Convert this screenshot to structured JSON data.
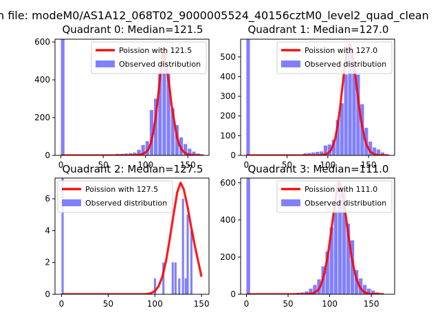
{
  "suptitle": "n file: modeM0/AS1A12_068T02_9000005524_40156cztM0_level2_quad_clean",
  "colors": {
    "bar": "#8080ff",
    "curve": "#ff0000",
    "axis": "#000000"
  },
  "chart_data": [
    {
      "type": "bar",
      "title": "Quadrant 0: Median=121.5",
      "median": 121.5,
      "xlim": [
        -7,
        175
      ],
      "ylim": [
        0,
        615
      ],
      "xticks": [
        0,
        50,
        100,
        150
      ],
      "yticks": [
        0,
        200,
        400,
        600
      ],
      "legend": [
        "Poission with 121.5",
        "Observed distribution"
      ],
      "legend_placement": "top-right",
      "bin_width": 4.2,
      "bars": [
        [
          0,
          615
        ],
        [
          65,
          8
        ],
        [
          70,
          8
        ],
        [
          75,
          10
        ],
        [
          80,
          12
        ],
        [
          85,
          15
        ],
        [
          90,
          30
        ],
        [
          95,
          55
        ],
        [
          100,
          75
        ],
        [
          105,
          240
        ],
        [
          110,
          300
        ],
        [
          115,
          430
        ],
        [
          120,
          530
        ],
        [
          125,
          435
        ],
        [
          130,
          250
        ],
        [
          135,
          160
        ],
        [
          140,
          95
        ],
        [
          145,
          60
        ],
        [
          150,
          35
        ],
        [
          155,
          20
        ],
        [
          160,
          10
        ],
        [
          165,
          5
        ]
      ],
      "curve": {
        "x": [
          0,
          80,
          85,
          90,
          95,
          100,
          103,
          106,
          109,
          112,
          115,
          118,
          121.5,
          125,
          128,
          131,
          134,
          137,
          140,
          143,
          146,
          150,
          155,
          160,
          168
        ],
        "y": [
          0,
          0,
          1,
          2,
          5,
          15,
          30,
          60,
          120,
          200,
          320,
          450,
          570,
          460,
          370,
          260,
          180,
          100,
          55,
          30,
          15,
          5,
          2,
          0,
          0
        ]
      }
    },
    {
      "type": "bar",
      "title": "Quadrant 1: Median=127.0",
      "median": 127.0,
      "xlim": [
        -7,
        182
      ],
      "ylim": [
        0,
        590
      ],
      "xticks": [
        0,
        50,
        100,
        150
      ],
      "yticks": [
        0,
        100,
        200,
        300,
        400,
        500
      ],
      "legend": [
        "Poission with 127.0",
        "Observed distribution"
      ],
      "legend_placement": "top-right",
      "bin_width": 4.4,
      "bars": [
        [
          0,
          590
        ],
        [
          70,
          10
        ],
        [
          75,
          12
        ],
        [
          80,
          15
        ],
        [
          85,
          18
        ],
        [
          90,
          20
        ],
        [
          95,
          50
        ],
        [
          100,
          55
        ],
        [
          105,
          80
        ],
        [
          110,
          180
        ],
        [
          115,
          265
        ],
        [
          120,
          410
        ],
        [
          125,
          545
        ],
        [
          130,
          470
        ],
        [
          135,
          410
        ],
        [
          140,
          260
        ],
        [
          145,
          140
        ],
        [
          150,
          70
        ],
        [
          155,
          40
        ],
        [
          160,
          30
        ],
        [
          165,
          15
        ],
        [
          170,
          5
        ]
      ],
      "curve": {
        "x": [
          0,
          85,
          90,
          95,
          100,
          103,
          106,
          109,
          112,
          115,
          118,
          121,
          124,
          127,
          130,
          133,
          136,
          139,
          142,
          145,
          148,
          152,
          157,
          162,
          175
        ],
        "y": [
          0,
          0,
          1,
          3,
          10,
          22,
          45,
          85,
          150,
          240,
          350,
          460,
          540,
          565,
          520,
          430,
          330,
          230,
          150,
          90,
          50,
          20,
          5,
          1,
          0
        ]
      }
    },
    {
      "type": "bar",
      "title": "Quadrant 2: Median=127.5",
      "median": 127.5,
      "xlim": [
        -7,
        158
      ],
      "ylim": [
        0,
        7.3
      ],
      "xticks": [
        0,
        50,
        100,
        150
      ],
      "yticks": [
        0,
        2,
        4,
        6
      ],
      "legend": [
        "Poission with 127.5",
        "Observed distribution"
      ],
      "legend_placement": "top-left",
      "bin_width": 2.3,
      "bars": [
        [
          0,
          7.3
        ],
        [
          99,
          1
        ],
        [
          108,
          2
        ],
        [
          118,
          2
        ],
        [
          121,
          2
        ],
        [
          125,
          1
        ],
        [
          129,
          6
        ],
        [
          132,
          1
        ],
        [
          134,
          5
        ],
        [
          138,
          4
        ]
      ],
      "curve": {
        "x": [
          0,
          90,
          95,
          100,
          104,
          108,
          112,
          116,
          120,
          124,
          127.5,
          131,
          135,
          139,
          143,
          147,
          150
        ],
        "y": [
          0,
          0,
          0.05,
          0.2,
          0.5,
          1.1,
          2.1,
          3.5,
          5.0,
          6.4,
          7.0,
          6.6,
          5.5,
          4.2,
          3.0,
          1.9,
          1.1
        ]
      }
    },
    {
      "type": "bar",
      "title": "Quadrant 3: Median=111.0",
      "median": 111.0,
      "xlim": [
        -7,
        178
      ],
      "ylim": [
        0,
        625
      ],
      "xticks": [
        0,
        50,
        100,
        150
      ],
      "yticks": [
        0,
        200,
        400,
        600
      ],
      "legend": [
        "Poission with 111.0",
        "Observed distribution"
      ],
      "legend_placement": "top-right",
      "bin_width": 4.4,
      "bars": [
        [
          0,
          625
        ],
        [
          55,
          5
        ],
        [
          60,
          8
        ],
        [
          65,
          10
        ],
        [
          70,
          15
        ],
        [
          75,
          30
        ],
        [
          80,
          50
        ],
        [
          85,
          80
        ],
        [
          90,
          150
        ],
        [
          95,
          230
        ],
        [
          100,
          360
        ],
        [
          105,
          460
        ],
        [
          110,
          600
        ],
        [
          115,
          580
        ],
        [
          120,
          380
        ],
        [
          125,
          290
        ],
        [
          130,
          130
        ],
        [
          135,
          85
        ],
        [
          140,
          50
        ],
        [
          145,
          30
        ],
        [
          150,
          20
        ],
        [
          155,
          10
        ],
        [
          160,
          5
        ]
      ],
      "curve": {
        "x": [
          0,
          70,
          75,
          80,
          85,
          88,
          91,
          94,
          97,
          100,
          103,
          106,
          109,
          111,
          114,
          117,
          120,
          123,
          126,
          129,
          132,
          136,
          141,
          148,
          165
        ],
        "y": [
          0,
          0,
          2,
          5,
          18,
          35,
          70,
          120,
          190,
          280,
          380,
          480,
          570,
          605,
          575,
          500,
          400,
          300,
          210,
          140,
          85,
          40,
          12,
          2,
          0
        ]
      }
    }
  ]
}
